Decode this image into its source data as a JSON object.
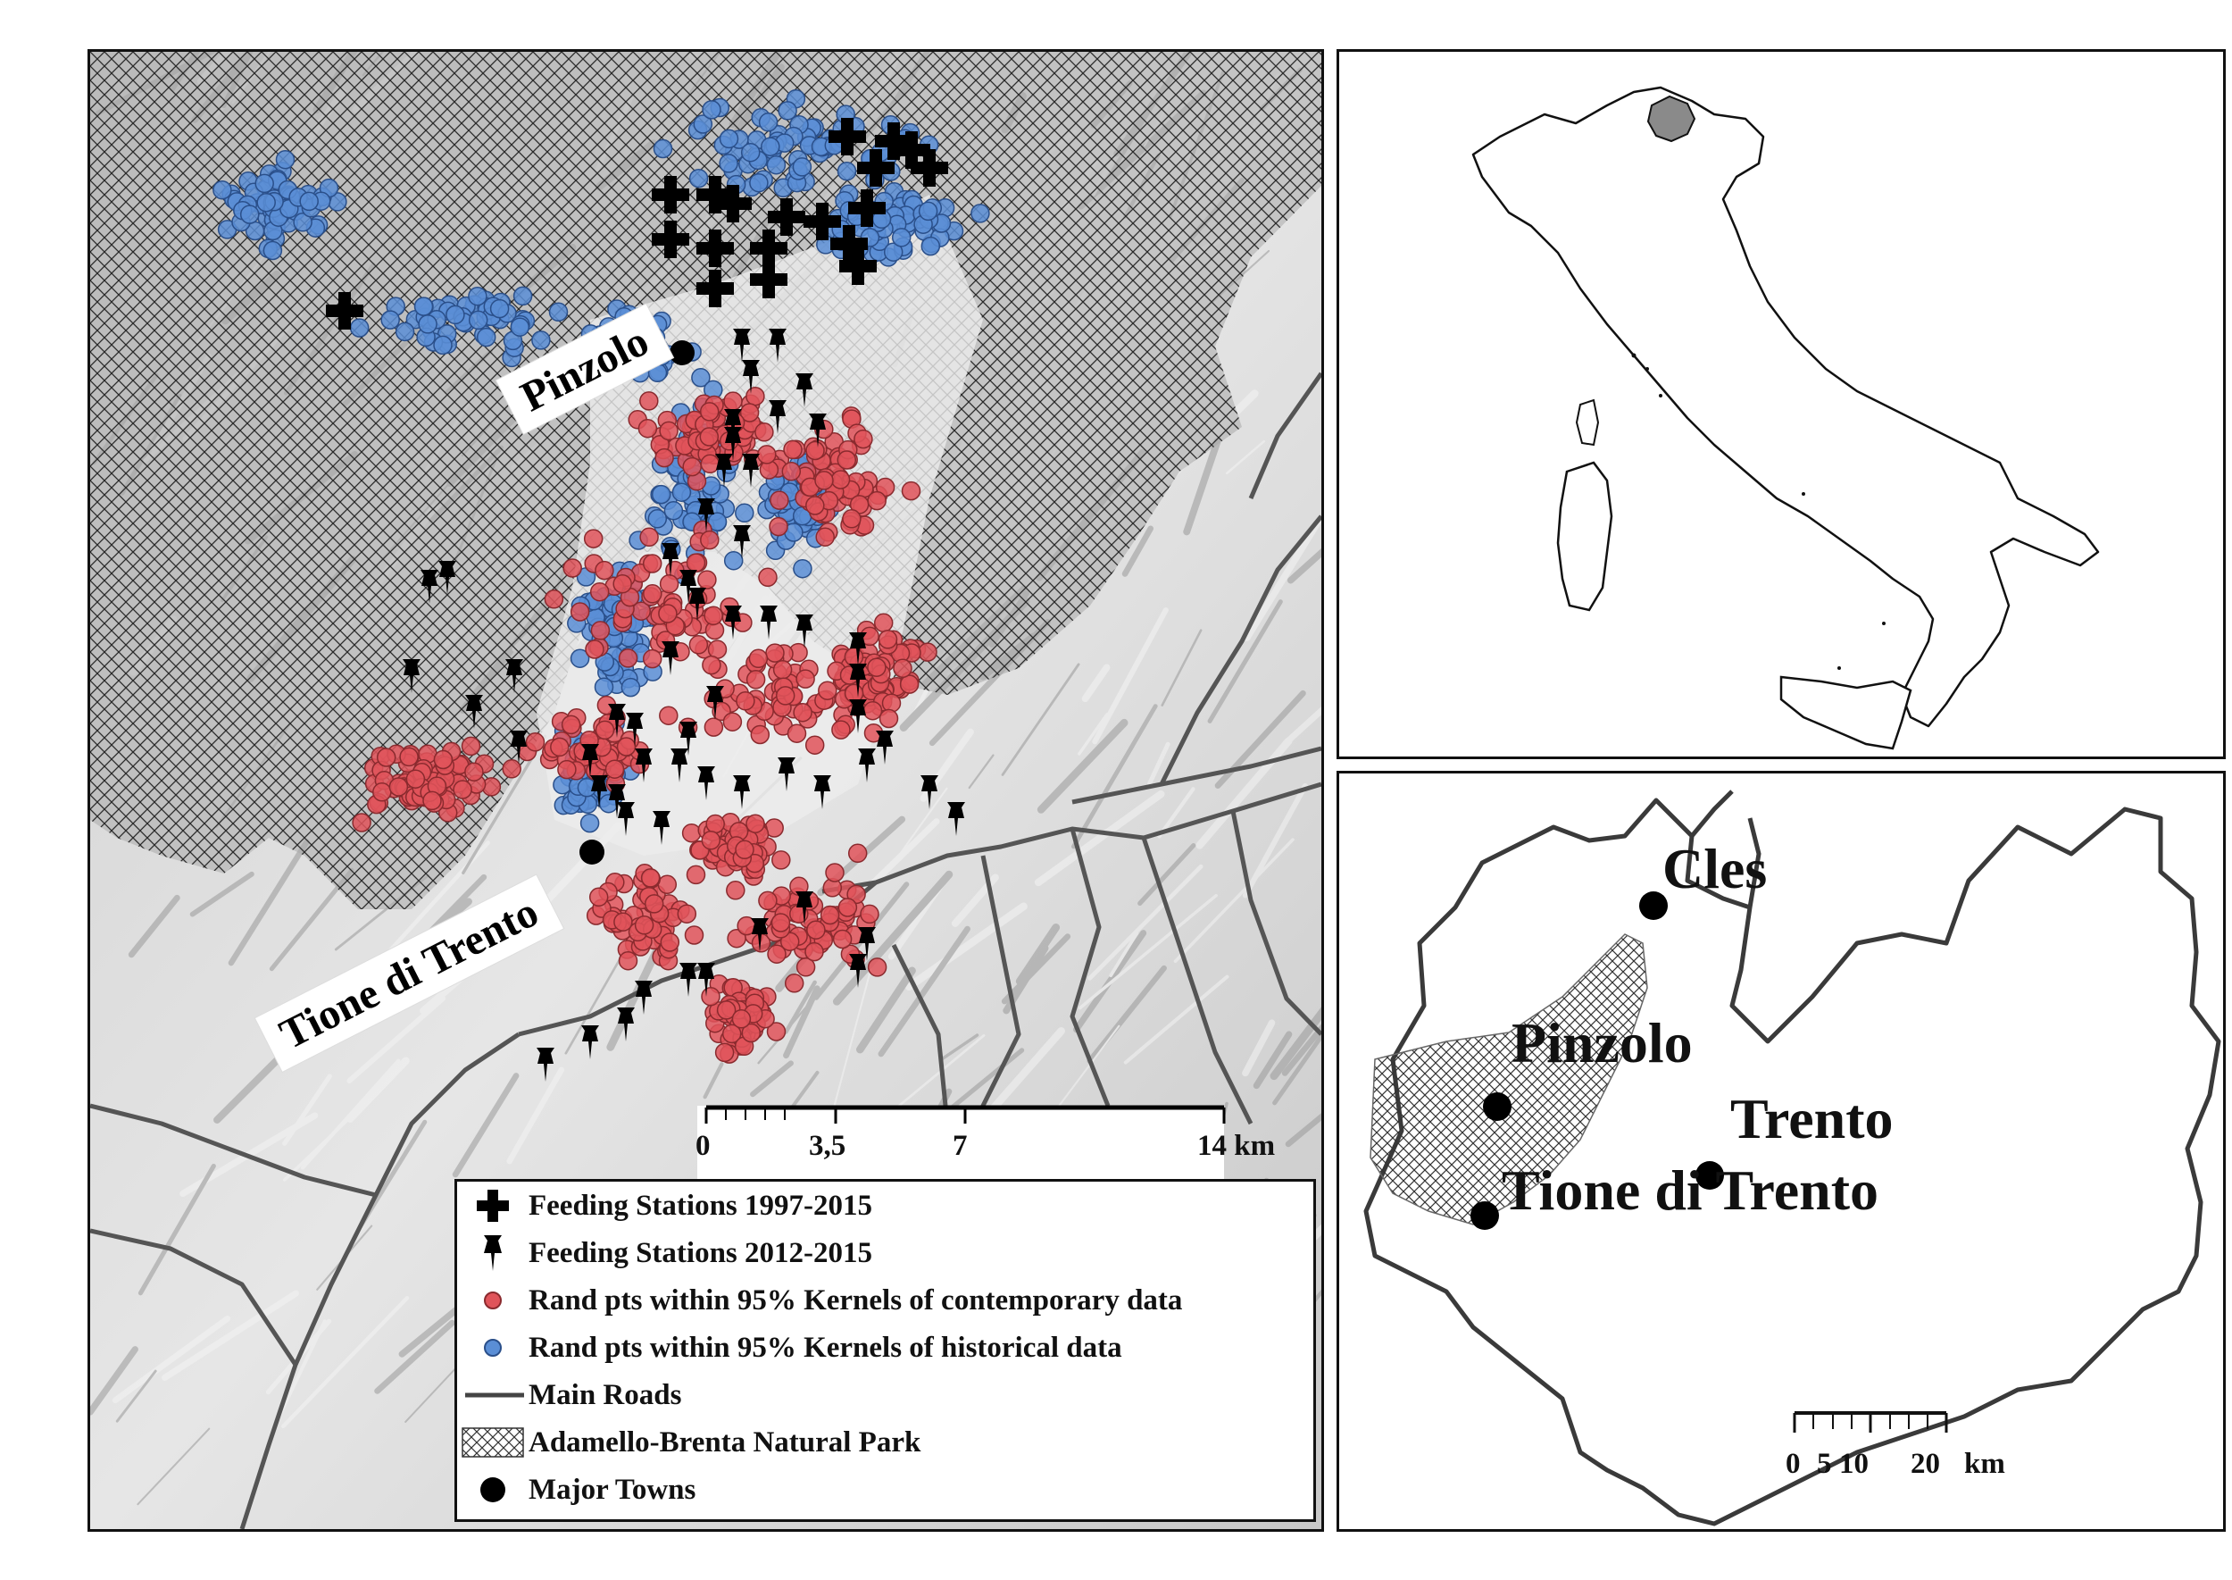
{
  "main_map": {
    "town_labels": {
      "pinzolo": "Pinzolo",
      "tione": "Tione di Trento"
    },
    "scale_bar": {
      "ticks": [
        "0",
        "3,5",
        "7",
        "14 km"
      ]
    },
    "legend": {
      "items": [
        {
          "label": "Feeding Stations 1997-2015",
          "symbol": "cross-icon"
        },
        {
          "label": "Feeding Stations 2012-2015",
          "symbol": "pin-icon"
        },
        {
          "label": "Rand pts within 95% Kernels of contemporary data",
          "symbol": "red-point-icon",
          "color": "#e0545a"
        },
        {
          "label": "Rand pts within 95% Kernels of historical data",
          "symbol": "blue-point-icon",
          "color": "#5a8ed6"
        },
        {
          "label": "Main Roads",
          "symbol": "road-line-icon"
        },
        {
          "label": "Adamello-Brenta Natural Park",
          "symbol": "crosshatch-icon"
        },
        {
          "label": "Major Towns",
          "symbol": "town-dot-icon"
        }
      ]
    }
  },
  "trentino_inset": {
    "towns": {
      "cles": "Cles",
      "pinzolo": "Pinzolo",
      "trento": "Trento",
      "tione": "Tione di Trento"
    },
    "scale_bar": {
      "ticks": [
        "0",
        "5",
        "10",
        "20",
        "km"
      ]
    }
  },
  "colors": {
    "red_points": "#e0545a",
    "blue_points": "#5a8ed6",
    "park_hatch": "#333333",
    "terrain": "#d9d9d9"
  }
}
